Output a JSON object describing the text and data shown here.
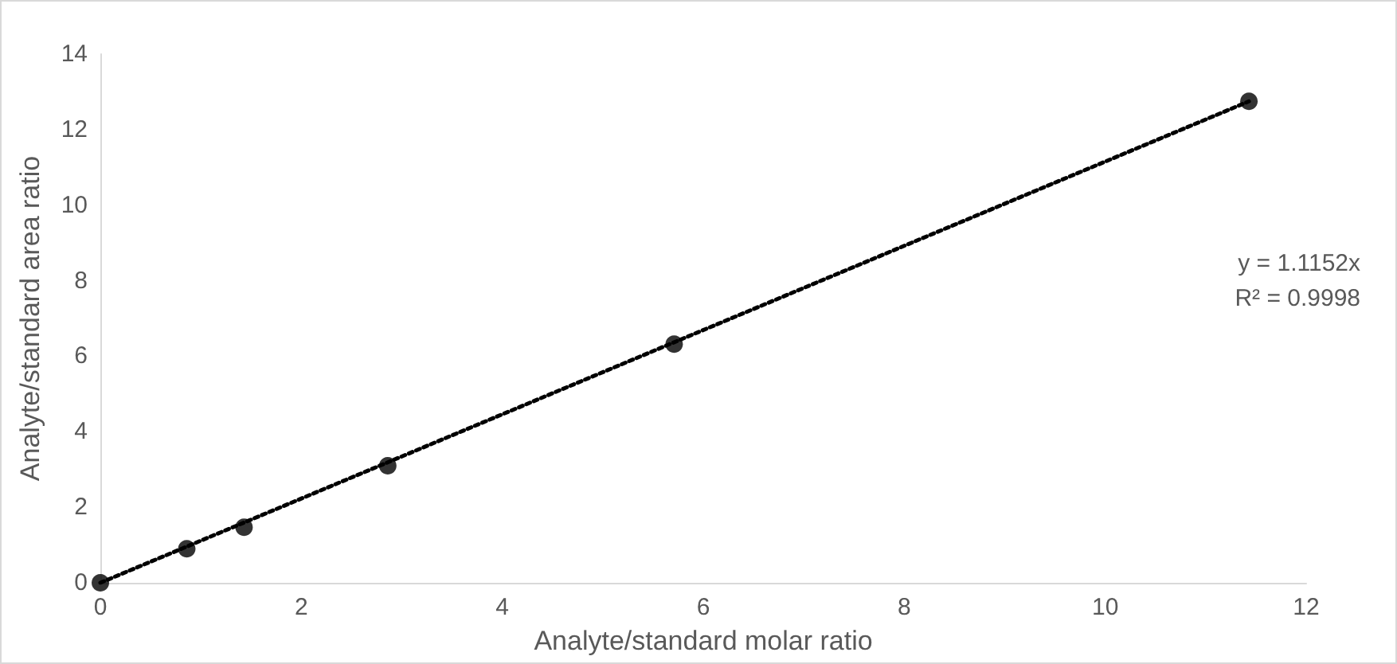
{
  "chart_data": {
    "type": "scatter",
    "xlabel": "Analyte/standard molar ratio",
    "ylabel": "Analyte/standard area ratio",
    "xlim": [
      0,
      12
    ],
    "xticks": [
      0,
      2,
      4,
      6,
      8,
      10,
      12
    ],
    "ylim": [
      0,
      14
    ],
    "yticks": [
      0,
      2,
      4,
      6,
      8,
      10,
      12,
      14
    ],
    "grid": false,
    "marker": "circle",
    "series": [
      {
        "type": "scatter",
        "color": "#000000",
        "x": [
          0,
          0.86,
          1.43,
          2.86,
          5.71,
          11.43
        ],
        "values": [
          0,
          0.9,
          1.47,
          3.1,
          6.32,
          12.75
        ]
      },
      {
        "type": "line",
        "color": "#000000",
        "line_style": "dotted",
        "marker": "none",
        "x": [
          0,
          11.43
        ],
        "values": [
          0,
          12.75
        ]
      }
    ],
    "annotations": [
      "y = 1.1152x",
      "R² = 0.9998"
    ]
  }
}
